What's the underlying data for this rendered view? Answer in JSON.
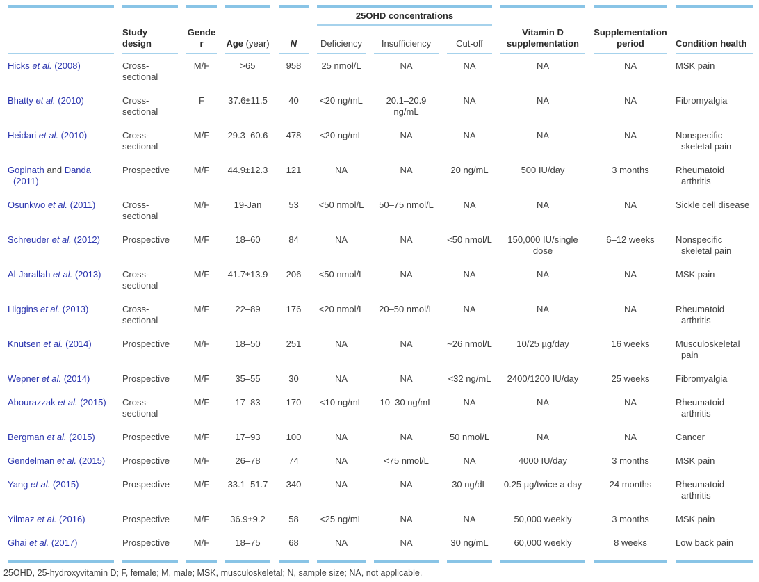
{
  "colors": {
    "accent_bar": "#89c4e6",
    "rule_line": "#a6d2ec",
    "citation_blue": "#2a34ae",
    "body_text": "#3e3e3e"
  },
  "table": {
    "spanner_label": "25OHD concentrations",
    "columns": [
      {
        "key": "study",
        "label": ""
      },
      {
        "key": "design",
        "label": "Study design"
      },
      {
        "key": "gender",
        "label": "Gender"
      },
      {
        "key": "age",
        "label": "Age",
        "suffix": " (year)"
      },
      {
        "key": "n",
        "label": "N"
      },
      {
        "key": "deficiency",
        "label": "Deficiency"
      },
      {
        "key": "insufficiency",
        "label": "Insufficiency"
      },
      {
        "key": "cutoff",
        "label": "Cut-off"
      },
      {
        "key": "vitd",
        "label": "Vitamin D supplementation"
      },
      {
        "key": "period",
        "label": "Supplementation period"
      },
      {
        "key": "condition",
        "label": "Condition health"
      }
    ],
    "rows": [
      {
        "study": [
          [
            "Hicks ",
            "b"
          ],
          [
            "et al.",
            "bi"
          ],
          [
            " (2008)",
            "b"
          ]
        ],
        "design": "Cross-sectional",
        "gender": "M/F",
        "age": ">65",
        "n": "958",
        "deficiency": "25 nmol/L",
        "insufficiency": "NA",
        "cutoff": "NA",
        "vitd": "NA",
        "period": "NA",
        "condition": "MSK pain"
      },
      {
        "study": [
          [
            "Bhatty ",
            "b"
          ],
          [
            "et al.",
            "bi"
          ],
          [
            " (2010)",
            "b"
          ]
        ],
        "design": "Cross-sectional",
        "gender": "F",
        "age": "37.6±11.5",
        "n": "40",
        "deficiency": "<20 ng/mL",
        "insufficiency": "20.1–20.9 ng/mL",
        "cutoff": "NA",
        "vitd": "NA",
        "period": "NA",
        "condition": "Fibromyalgia"
      },
      {
        "study": [
          [
            "Heidari ",
            "b"
          ],
          [
            "et al.",
            "bi"
          ],
          [
            " (2010)",
            "b"
          ]
        ],
        "design": "Cross-sectional",
        "gender": "M/F",
        "age": "29.3–60.6",
        "n": "478",
        "deficiency": "<20 ng/mL",
        "insufficiency": "NA",
        "cutoff": "NA",
        "vitd": "NA",
        "period": "NA",
        "condition": "Nonspecific skeletal pain"
      },
      {
        "study": [
          [
            "Gopinath",
            "b"
          ],
          [
            " and ",
            "k"
          ],
          [
            "Danda (2011)",
            "b"
          ]
        ],
        "design": "Prospective",
        "gender": "M/F",
        "age": "44.9±12.3",
        "n": "121",
        "deficiency": "NA",
        "insufficiency": "NA",
        "cutoff": "20 ng/mL",
        "vitd": "500 IU/day",
        "period": "3 months",
        "condition": "Rheumatoid arthritis"
      },
      {
        "study": [
          [
            "Osunkwo ",
            "b"
          ],
          [
            "et al.",
            "bi"
          ],
          [
            " (2011)",
            "b"
          ]
        ],
        "design": "Cross-sectional",
        "gender": "M/F",
        "age": "19-Jan",
        "n": "53",
        "deficiency": "<50 nmol/L",
        "insufficiency": "50–75 nmol/L",
        "cutoff": "NA",
        "vitd": "NA",
        "period": "NA",
        "condition": "Sickle cell disease"
      },
      {
        "study": [
          [
            "Schreuder ",
            "b"
          ],
          [
            "et al.",
            "bi"
          ],
          [
            " (2012)",
            "b"
          ]
        ],
        "design": "Prospective",
        "gender": "M/F",
        "age": "18–60",
        "n": "84",
        "deficiency": "NA",
        "insufficiency": "NA",
        "cutoff": "<50 nmol/L",
        "vitd": "150,000 IU/single dose",
        "period": "6–12 weeks",
        "condition": "Nonspecific skeletal pain"
      },
      {
        "study": [
          [
            "Al-Jarallah ",
            "b"
          ],
          [
            "et al.",
            "bi"
          ],
          [
            " (2013)",
            "b"
          ]
        ],
        "design": "Cross-sectional",
        "gender": "M/F",
        "age": "41.7±13.9",
        "n": "206",
        "deficiency": "<50 nmol/L",
        "insufficiency": "NA",
        "cutoff": "NA",
        "vitd": "NA",
        "period": "NA",
        "condition": "MSK pain"
      },
      {
        "study": [
          [
            "Higgins ",
            "b"
          ],
          [
            "et al.",
            "bi"
          ],
          [
            " (2013)",
            "b"
          ]
        ],
        "design": "Cross-sectional",
        "gender": "M/F",
        "age": "22–89",
        "n": "176",
        "deficiency": "<20 nmol/L",
        "insufficiency": "20–50 nmol/L",
        "cutoff": "NA",
        "vitd": "NA",
        "period": "NA",
        "condition": "Rheumatoid arthritis"
      },
      {
        "study": [
          [
            "Knutsen ",
            "b"
          ],
          [
            "et al.",
            "bi"
          ],
          [
            " (2014)",
            "b"
          ]
        ],
        "design": "Prospective",
        "gender": "M/F",
        "age": "18–50",
        "n": "251",
        "deficiency": "NA",
        "insufficiency": "NA",
        "cutoff": "~26 nmol/L",
        "vitd": "10/25 µg/day",
        "period": "16 weeks",
        "condition": "Musculoskeletal pain"
      },
      {
        "study": [
          [
            "Wepner ",
            "b"
          ],
          [
            "et al.",
            "bi"
          ],
          [
            " (2014)",
            "b"
          ]
        ],
        "design": "Prospective",
        "gender": "M/F",
        "age": "35–55",
        "n": "30",
        "deficiency": "NA",
        "insufficiency": "NA",
        "cutoff": "<32 ng/mL",
        "vitd": "2400/1200 IU/day",
        "period": "25 weeks",
        "condition": "Fibromyalgia"
      },
      {
        "study": [
          [
            "Abourazzak ",
            "b"
          ],
          [
            "et al.",
            "bi"
          ],
          [
            " (2015)",
            "b"
          ]
        ],
        "design": "Cross-sectional",
        "gender": "M/F",
        "age": "17–83",
        "n": "170",
        "deficiency": "<10 ng/mL",
        "insufficiency": "10–30 ng/mL",
        "cutoff": "NA",
        "vitd": "NA",
        "period": "NA",
        "condition": "Rheumatoid arthritis"
      },
      {
        "study": [
          [
            "Bergman ",
            "b"
          ],
          [
            "et al.",
            "bi"
          ],
          [
            " (2015)",
            "b"
          ]
        ],
        "design": "Prospective",
        "gender": "M/F",
        "age": "17–93",
        "n": "100",
        "deficiency": "NA",
        "insufficiency": "NA",
        "cutoff": "50 nmol/L",
        "vitd": "NA",
        "period": "NA",
        "condition": "Cancer"
      },
      {
        "study": [
          [
            "Gendelman ",
            "b"
          ],
          [
            "et al.",
            "bi"
          ],
          [
            " (2015)",
            "b"
          ]
        ],
        "design": "Prospective",
        "gender": "M/F",
        "age": "26–78",
        "n": "74",
        "deficiency": "NA",
        "insufficiency": "<75 nmol/L",
        "cutoff": "NA",
        "vitd": "4000 IU/day",
        "period": "3 months",
        "condition": "MSK pain"
      },
      {
        "study": [
          [
            "Yang ",
            "b"
          ],
          [
            "et al.",
            "bi"
          ],
          [
            " (2015)",
            "b"
          ]
        ],
        "design": "Prospective",
        "gender": "M/F",
        "age": "33.1–51.7",
        "n": "340",
        "deficiency": "NA",
        "insufficiency": "NA",
        "cutoff": "30 ng/dL",
        "vitd": "0.25 µg/twice a day",
        "period": "24 months",
        "condition": "Rheumatoid arthritis"
      },
      {
        "study": [
          [
            "Yilmaz ",
            "b"
          ],
          [
            "et al.",
            "bi"
          ],
          [
            " (2016)",
            "b"
          ]
        ],
        "design": "Prospective",
        "gender": "M/F",
        "age": "36.9±9.2",
        "n": "58",
        "deficiency": "<25 ng/mL",
        "insufficiency": "NA",
        "cutoff": "NA",
        "vitd": "50,000 weekly",
        "period": "3 months",
        "condition": "MSK pain"
      },
      {
        "study": [
          [
            "Ghai ",
            "b"
          ],
          [
            "et al.",
            "bi"
          ],
          [
            " (2017)",
            "b"
          ]
        ],
        "design": "Prospective",
        "gender": "M/F",
        "age": "18–75",
        "n": "68",
        "deficiency": "NA",
        "insufficiency": "NA",
        "cutoff": "30 ng/mL",
        "vitd": "60,000 weekly",
        "period": "8 weeks",
        "condition": "Low back pain"
      }
    ],
    "footnote": "25OHD, 25-hydroxyvitamin D; F, female; M, male; MSK, musculoskeletal; N, sample size; NA, not applicable."
  }
}
